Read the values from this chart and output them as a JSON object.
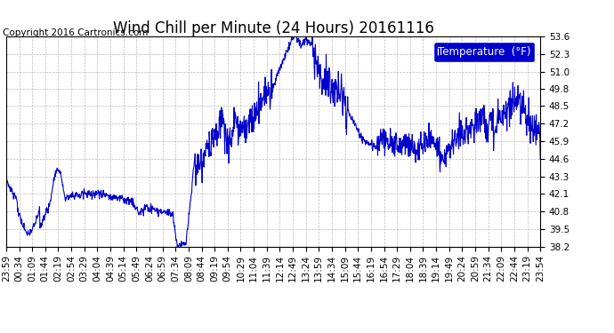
{
  "title": "Wind Chill per Minute (24 Hours) 20161116",
  "copyright": "Copyright 2016 Cartronics.com",
  "legend_label": "Temperature  (°F)",
  "line_color": "#0000cc",
  "background_color": "#ffffff",
  "plot_bg_color": "#ffffff",
  "grid_color": "#aaaaaa",
  "ylim": [
    38.2,
    53.6
  ],
  "yticks": [
    38.2,
    39.5,
    40.8,
    42.1,
    43.3,
    44.6,
    45.9,
    47.2,
    48.5,
    49.8,
    51.0,
    52.3,
    53.6
  ],
  "xtick_labels": [
    "23:59",
    "00:34",
    "01:09",
    "01:44",
    "02:19",
    "02:54",
    "03:29",
    "04:04",
    "04:39",
    "05:14",
    "05:49",
    "06:24",
    "06:59",
    "07:34",
    "08:09",
    "08:44",
    "09:19",
    "09:54",
    "10:29",
    "11:04",
    "11:39",
    "12:14",
    "12:49",
    "13:24",
    "13:59",
    "14:34",
    "15:09",
    "15:44",
    "16:19",
    "16:54",
    "17:29",
    "18:04",
    "18:39",
    "19:14",
    "19:49",
    "20:24",
    "20:59",
    "21:34",
    "22:09",
    "22:44",
    "23:19",
    "23:54"
  ],
  "title_fontsize": 12,
  "copyright_fontsize": 7.5,
  "legend_fontsize": 8.5,
  "tick_fontsize": 7.5
}
